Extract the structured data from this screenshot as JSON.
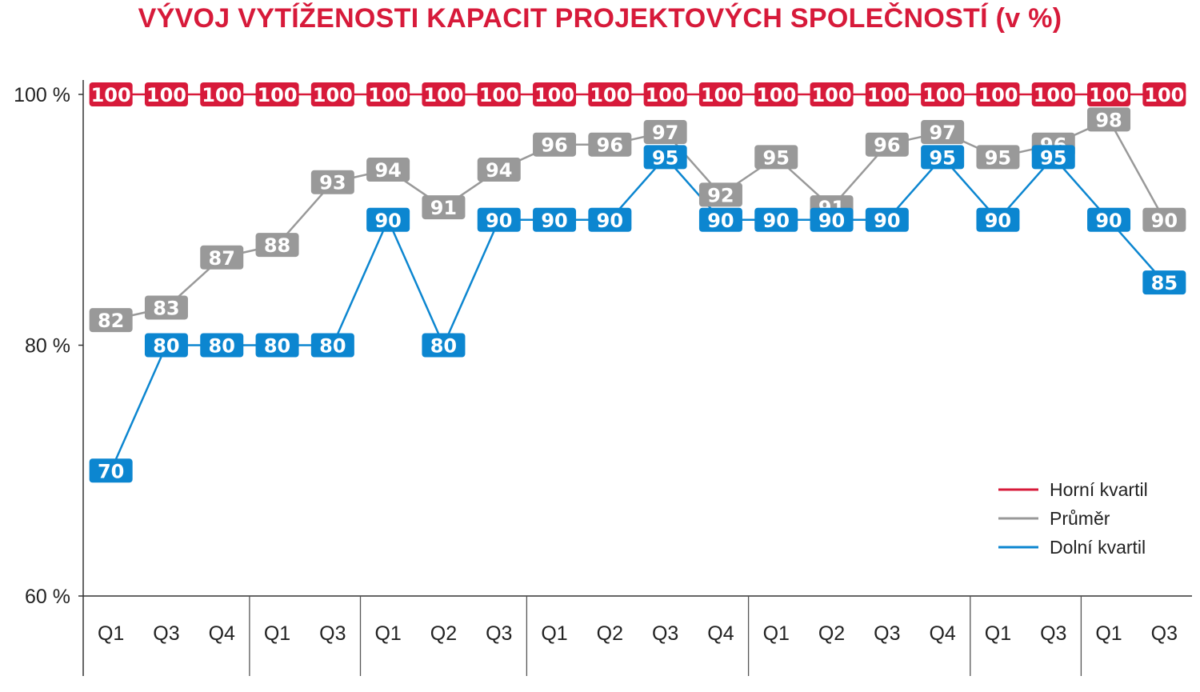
{
  "title": "VÝVOJ VYTÍŽENOSTI KAPACIT PROJEKTOVÝCH SPOLEČNOSTÍ (v %)",
  "chart_data": {
    "type": "line",
    "title": "VÝVOJ VYTÍŽENOSTI KAPACIT PROJEKTOVÝCH SPOLEČNOSTÍ (v %)",
    "categories": [
      "Q1",
      "Q3",
      "Q4",
      "Q1",
      "Q3",
      "Q1",
      "Q2",
      "Q3",
      "Q1",
      "Q2",
      "Q3",
      "Q4",
      "Q1",
      "Q2",
      "Q3",
      "Q4",
      "Q1",
      "Q3",
      "Q1",
      "Q3"
    ],
    "group_sizes": [
      3,
      2,
      3,
      4,
      4,
      2,
      2
    ],
    "ylim": [
      60,
      100
    ],
    "yticks": [
      60,
      80,
      100
    ],
    "ytick_labels": [
      "60 %",
      "80 %",
      "100 %"
    ],
    "grid": false,
    "legend_position": "bottom-right",
    "series": [
      {
        "name": "Horní kvartil",
        "color": "#d71a3a",
        "values": [
          100,
          100,
          100,
          100,
          100,
          100,
          100,
          100,
          100,
          100,
          100,
          100,
          100,
          100,
          100,
          100,
          100,
          100,
          100,
          100
        ]
      },
      {
        "name": "Průměr",
        "color": "#999999",
        "values": [
          82,
          83,
          87,
          88,
          93,
          94,
          91,
          94,
          96,
          96,
          97,
          92,
          95,
          91,
          96,
          97,
          95,
          96,
          98,
          90
        ]
      },
      {
        "name": "Dolní kvartil",
        "color": "#0c86d0",
        "values": [
          70,
          80,
          80,
          80,
          80,
          90,
          80,
          90,
          90,
          90,
          95,
          90,
          90,
          90,
          90,
          95,
          90,
          95,
          90,
          85
        ]
      }
    ]
  }
}
